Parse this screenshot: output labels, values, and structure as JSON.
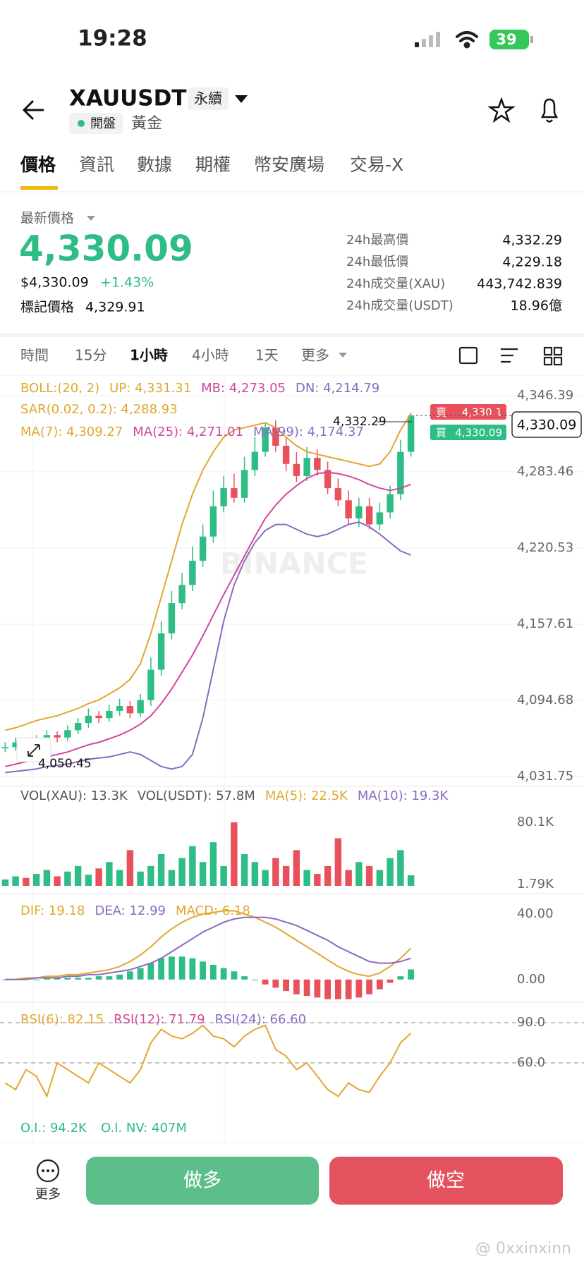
{
  "status_bar": {
    "time": "19:28",
    "battery": "39"
  },
  "header": {
    "symbol": "XAUUSDT",
    "contract": "永續",
    "status": "開盤",
    "name": "黃金"
  },
  "tabs": [
    "價格",
    "資訊",
    "數據",
    "期權",
    "幣安廣場",
    "交易-X"
  ],
  "price": {
    "label": "最新價格",
    "last": "4,330.09",
    "usd": "$4,330.09",
    "change": "+1.43%",
    "mark_label": "標記價格",
    "mark": "4,329.91"
  },
  "stats": [
    {
      "label": "24h最高價",
      "value": "4,332.29"
    },
    {
      "label": "24h最低價",
      "value": "4,229.18"
    },
    {
      "label": "24h成交量(XAU)",
      "value": "443,742.839"
    },
    {
      "label": "24h成交量(USDT)",
      "value": "18.96億"
    }
  ],
  "intervals": [
    "時間",
    "15分",
    "1小時",
    "4小時",
    "1天",
    "更多"
  ],
  "chart_data": [
    {
      "type": "candlestick",
      "legend": [
        [
          {
            "text": "BOLL:(20, 2)",
            "color": "#e0a82e"
          },
          {
            "text": "UP: 4,331.31",
            "color": "#e0a82e"
          },
          {
            "text": "MB: 4,273.05",
            "color": "#d0479c"
          },
          {
            "text": "DN: 4,214.79",
            "color": "#8a6bbf"
          }
        ],
        [
          {
            "text": "SAR(0.02, 0.2): 4,288.93",
            "color": "#e0a82e"
          }
        ],
        [
          {
            "text": "MA(7): 4,309.27",
            "color": "#e0a82e"
          },
          {
            "text": "MA(25): 4,271.01",
            "color": "#d0479c"
          },
          {
            "text": "MA(99): 4,174.37",
            "color": "#8a6bbf"
          }
        ]
      ],
      "open": [
        4055,
        4056,
        4060,
        4054,
        4062,
        4066,
        4064,
        4070,
        4076,
        4082,
        4080,
        4086,
        4090,
        4084,
        4095,
        4120,
        4150,
        4175,
        4190,
        4210,
        4230,
        4255,
        4270,
        4262,
        4285,
        4300,
        4320,
        4305,
        4290,
        4280,
        4295,
        4285,
        4270,
        4260,
        4245,
        4255,
        4240,
        4250,
        4265,
        4300
      ],
      "high": [
        4060,
        4064,
        4063,
        4066,
        4070,
        4069,
        4074,
        4080,
        4088,
        4086,
        4091,
        4096,
        4094,
        4100,
        4130,
        4160,
        4185,
        4200,
        4222,
        4240,
        4268,
        4280,
        4282,
        4296,
        4312,
        4324,
        4326,
        4312,
        4300,
        4304,
        4302,
        4292,
        4278,
        4268,
        4262,
        4262,
        4258,
        4272,
        4310,
        4332.29
      ],
      "low": [
        4052,
        4053,
        4050.45,
        4052,
        4058,
        4060,
        4061,
        4067,
        4072,
        4076,
        4077,
        4082,
        4080,
        4081,
        4090,
        4115,
        4145,
        4170,
        4185,
        4205,
        4225,
        4250,
        4258,
        4258,
        4280,
        4296,
        4300,
        4284,
        4275,
        4276,
        4280,
        4265,
        4255,
        4240,
        4238,
        4236,
        4235,
        4245,
        4260,
        4296
      ],
      "close": [
        4056,
        4060,
        4054,
        4062,
        4066,
        4064,
        4070,
        4076,
        4082,
        4080,
        4086,
        4090,
        4084,
        4095,
        4120,
        4150,
        4175,
        4190,
        4210,
        4230,
        4255,
        4270,
        4262,
        4285,
        4300,
        4320,
        4305,
        4290,
        4280,
        4295,
        4285,
        4270,
        4260,
        4245,
        4255,
        4240,
        4250,
        4265,
        4300,
        4330.09
      ],
      "up_color": "#2ebd85",
      "down_color": "#e8505b",
      "series": [
        {
          "color": "#e0a82e",
          "values": [
            4070,
            4072,
            4075,
            4078,
            4080,
            4082,
            4085,
            4088,
            4092,
            4095,
            4100,
            4105,
            4112,
            4125,
            4150,
            4180,
            4210,
            4240,
            4265,
            4285,
            4300,
            4312,
            4318,
            4320,
            4322,
            4324,
            4320,
            4312,
            4305,
            4300,
            4298,
            4296,
            4294,
            4292,
            4290,
            4288,
            4290,
            4300,
            4318,
            4331.31
          ]
        },
        {
          "color": "#d0479c",
          "values": [
            4040,
            4042,
            4044,
            4046,
            4048,
            4050,
            4052,
            4055,
            4058,
            4060,
            4063,
            4066,
            4070,
            4075,
            4082,
            4092,
            4104,
            4118,
            4132,
            4148,
            4165,
            4182,
            4198,
            4214,
            4230,
            4245,
            4256,
            4265,
            4272,
            4278,
            4282,
            4283,
            4282,
            4280,
            4277,
            4273,
            4270,
            4268,
            4270,
            4273.05
          ]
        },
        {
          "color": "#8a6bbf",
          "values": [
            4035,
            4036,
            4037,
            4038,
            4040,
            4041,
            4042,
            4044,
            4046,
            4047,
            4048,
            4050,
            4052,
            4050,
            4045,
            4040,
            4038,
            4040,
            4050,
            4080,
            4120,
            4160,
            4190,
            4210,
            4225,
            4235,
            4240,
            4240,
            4236,
            4232,
            4230,
            4232,
            4236,
            4240,
            4242,
            4238,
            4232,
            4225,
            4218,
            4214.79
          ]
        }
      ],
      "ylim": [
        4031.75,
        4346.39
      ],
      "yticks": [
        {
          "value": 4346.39,
          "label": "4,346.39"
        },
        {
          "value": 4283.46,
          "label": "4,283.46"
        },
        {
          "value": 4220.53,
          "label": "4,220.53"
        },
        {
          "value": 4157.61,
          "label": "4,157.61"
        },
        {
          "value": 4094.68,
          "label": "4,094.68"
        },
        {
          "value": 4031.75,
          "label": "4,031.75"
        }
      ],
      "grid": true,
      "high_label": "4,332.29",
      "low_label": "4,050.45",
      "ask": {
        "side": "賣",
        "price": "4,330.1"
      },
      "bid": {
        "side": "買",
        "price": "4,330.09"
      },
      "last_label": "4,330.09",
      "watermark": "BINANCE"
    },
    {
      "type": "bar",
      "legend": [
        [
          {
            "text": "VOL(XAU): 13.3K",
            "color": "#555555"
          },
          {
            "text": "VOL(USDT): 57.8M",
            "color": "#555555"
          },
          {
            "text": "MA(5): 22.5K",
            "color": "#e0a82e"
          },
          {
            "text": "MA(10): 19.3K",
            "color": "#8a6bbf"
          }
        ]
      ],
      "values": [
        8,
        12,
        10,
        15,
        20,
        12,
        18,
        25,
        14,
        22,
        30,
        20,
        45,
        18,
        25,
        40,
        20,
        35,
        50,
        30,
        55,
        25,
        80,
        40,
        30,
        20,
        35,
        25,
        45,
        20,
        15,
        25,
        60,
        20,
        30,
        25,
        20,
        35,
        45,
        13.3
      ],
      "ylim": [
        0,
        88
      ],
      "yticks": [
        {
          "value": 80.1,
          "label": "80.1K"
        },
        {
          "value": 1.79,
          "label": "1.79K"
        }
      ],
      "grid": false
    },
    {
      "type": "combo",
      "legend": [
        [
          {
            "text": "DIF: 19.18",
            "color": "#e0a82e"
          },
          {
            "text": "DEA: 12.99",
            "color": "#8a6bbf"
          },
          {
            "text": "MACD: 6.18",
            "color": "#e0a82e"
          }
        ]
      ],
      "histogram": [
        0,
        0,
        1,
        0,
        1,
        1,
        1,
        1,
        1,
        2,
        2,
        3,
        5,
        7,
        10,
        13,
        14,
        14,
        13,
        11,
        9,
        7,
        5,
        2,
        0,
        -3,
        -5,
        -7,
        -9,
        -10,
        -11,
        -12,
        -12,
        -12,
        -11,
        -9,
        -6,
        -2,
        2,
        6.18
      ],
      "series": [
        {
          "color": "#e0a82e",
          "values": [
            0,
            0,
            1,
            1,
            2,
            2,
            3,
            3,
            4,
            5,
            6,
            8,
            11,
            15,
            20,
            26,
            31,
            35,
            38,
            40,
            41,
            42,
            42,
            40,
            38,
            35,
            32,
            28,
            24,
            20,
            16,
            12,
            8,
            5,
            3,
            2,
            4,
            8,
            13,
            19.18
          ]
        },
        {
          "color": "#8a6bbf",
          "values": [
            0,
            0,
            0,
            1,
            1,
            1,
            2,
            2,
            3,
            3,
            4,
            5,
            6,
            8,
            10,
            13,
            17,
            21,
            25,
            29,
            32,
            35,
            37,
            38,
            38,
            38,
            37,
            35,
            33,
            30,
            27,
            24,
            20,
            17,
            14,
            11,
            10,
            10,
            11,
            12.99
          ]
        }
      ],
      "ylim": [
        -13,
        45
      ],
      "yticks": [
        {
          "value": 40,
          "label": "40.00"
        },
        {
          "value": 0,
          "label": "0.00"
        }
      ],
      "grid": false
    },
    {
      "type": "line",
      "legend": [
        [
          {
            "text": "RSI(6): 82.15",
            "color": "#e0a82e"
          },
          {
            "text": "RSI(12): 71.79",
            "color": "#d0479c"
          },
          {
            "text": "RSI(24): 66.60",
            "color": "#8a6bbf"
          }
        ]
      ],
      "series": [
        {
          "color": "#e0a82e",
          "values": [
            45,
            40,
            55,
            50,
            35,
            60,
            55,
            50,
            45,
            60,
            55,
            50,
            45,
            55,
            75,
            85,
            80,
            78,
            82,
            88,
            80,
            78,
            72,
            80,
            85,
            88,
            70,
            65,
            55,
            60,
            50,
            40,
            35,
            45,
            40,
            38,
            50,
            60,
            75,
            82.15
          ]
        }
      ],
      "ylim": [
        15,
        95
      ],
      "yticks": [
        {
          "value": 90,
          "label": "90.0"
        },
        {
          "value": 60,
          "label": "60.0"
        }
      ],
      "grid": true,
      "grid_dashed": true
    }
  ],
  "open_interest": [
    "O.I.: 94.2K",
    "O.I. NV: 407M"
  ],
  "footer": {
    "more": "更多",
    "long": "做多",
    "short": "做空",
    "credit": "@ 0xxinxinn"
  }
}
